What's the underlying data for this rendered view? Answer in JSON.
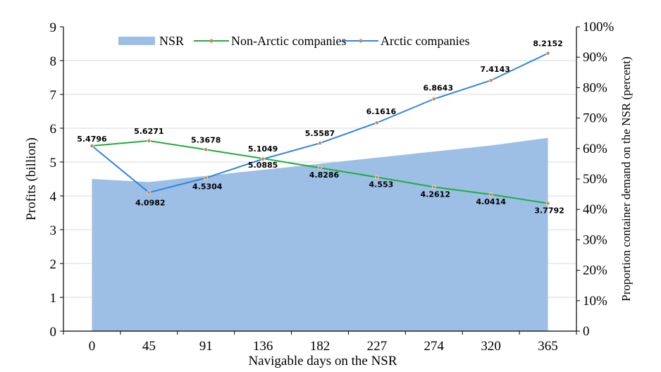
{
  "chart_data": {
    "type": "line",
    "x": [
      0,
      45,
      91,
      136,
      182,
      227,
      274,
      320,
      365
    ],
    "categories": [
      "0",
      "45",
      "91",
      "136",
      "182",
      "227",
      "274",
      "320",
      "365"
    ],
    "xlabel": "Navigable days on the NSR",
    "ylabel": "Profits (billion)",
    "y2label": "Proportion container demand on the NSR (percent)",
    "ylim": [
      0,
      9
    ],
    "yticks": [
      "0",
      "1",
      "2",
      "3",
      "4",
      "5",
      "6",
      "7",
      "8",
      "9"
    ],
    "y2lim": [
      0,
      100
    ],
    "y2ticks": [
      "0",
      "10%",
      "20%",
      "30%",
      "40%",
      "50%",
      "60%",
      "70%",
      "80%",
      "90%",
      "100%"
    ],
    "grid": true,
    "legend_position": "top",
    "series": [
      {
        "name": "NSR",
        "kind": "area",
        "axis": "right",
        "color": "#9dbfe6",
        "values": [
          50,
          49,
          51,
          53,
          55,
          57,
          59,
          61,
          63.5
        ]
      },
      {
        "name": "Non-Arctic companies",
        "kind": "line",
        "axis": "left",
        "color": "#1fae3c",
        "values": [
          5.4796,
          5.6271,
          5.3678,
          5.1049,
          4.8286,
          4.553,
          4.2612,
          4.0414,
          3.7792
        ],
        "labels": [
          "5.4796",
          "5.6271",
          "5.3678",
          "5.1049",
          "4.8286",
          "4.553",
          "4.2612",
          "4.0414",
          "3.7792"
        ]
      },
      {
        "name": "Arctic companies",
        "kind": "line",
        "axis": "left",
        "color": "#2e86de",
        "values": [
          5.4796,
          4.0982,
          4.5304,
          5.0885,
          5.5587,
          6.1616,
          6.8643,
          7.4143,
          8.2152
        ],
        "labels": [
          "",
          "4.0982",
          "4.5304",
          "5.0885",
          "5.5587",
          "6.1616",
          "6.8643",
          "7.4143",
          "8.2152"
        ]
      }
    ]
  }
}
